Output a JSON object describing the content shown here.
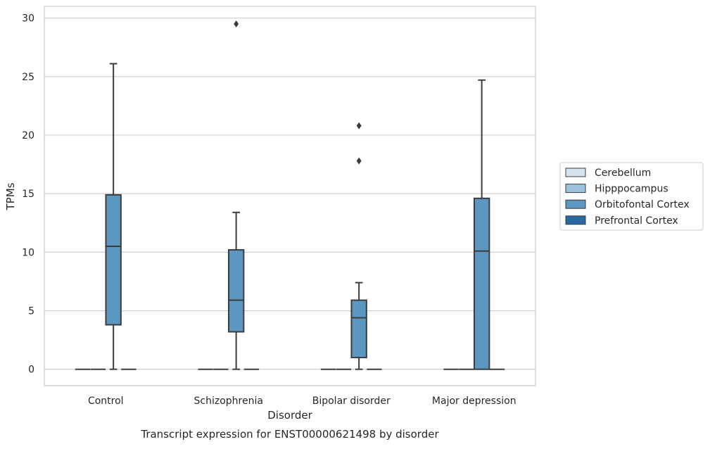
{
  "chart_data": {
    "type": "box",
    "caption": "Transcript expression for ENST00000621498 by disorder",
    "xlabel": "Disorder",
    "ylabel": "TPMs",
    "ylim": [
      -1.4,
      31
    ],
    "yticks": [
      0,
      5,
      10,
      15,
      20,
      25,
      30
    ],
    "grid": "horizontal",
    "legend_position": "right",
    "categories": [
      "Control",
      "Schizophrenia",
      "Bipolar disorder",
      "Major depression"
    ],
    "series": [
      {
        "name": "Cerebellum",
        "color": "#d4e3f0",
        "boxes": [
          {
            "category": "Control",
            "q1": 0,
            "median": 0,
            "q3": 0,
            "whisker_low": 0,
            "whisker_high": 0,
            "outliers": []
          },
          {
            "category": "Schizophrenia",
            "q1": 0,
            "median": 0,
            "q3": 0,
            "whisker_low": 0,
            "whisker_high": 0,
            "outliers": []
          },
          {
            "category": "Bipolar disorder",
            "q1": 0,
            "median": 0,
            "q3": 0,
            "whisker_low": 0,
            "whisker_high": 0,
            "outliers": []
          },
          {
            "category": "Major depression",
            "q1": 0,
            "median": 0,
            "q3": 0,
            "whisker_low": 0,
            "whisker_high": 0,
            "outliers": []
          }
        ]
      },
      {
        "name": "Hipppocampus",
        "color": "#9dc2dd",
        "boxes": [
          {
            "category": "Control",
            "q1": 0,
            "median": 0,
            "q3": 0,
            "whisker_low": 0,
            "whisker_high": 0,
            "outliers": []
          },
          {
            "category": "Schizophrenia",
            "q1": 0,
            "median": 0,
            "q3": 0,
            "whisker_low": 0,
            "whisker_high": 0,
            "outliers": []
          },
          {
            "category": "Bipolar disorder",
            "q1": 0,
            "median": 0,
            "q3": 0,
            "whisker_low": 0,
            "whisker_high": 0,
            "outliers": []
          },
          {
            "category": "Major depression",
            "q1": 0,
            "median": 0,
            "q3": 0,
            "whisker_low": 0,
            "whisker_high": 0,
            "outliers": []
          }
        ]
      },
      {
        "name": "Orbitofontal Cortex",
        "color": "#5b97c0",
        "boxes": [
          {
            "category": "Control",
            "q1": 3.8,
            "median": 10.5,
            "q3": 14.9,
            "whisker_low": 0,
            "whisker_high": 26.1,
            "outliers": []
          },
          {
            "category": "Schizophrenia",
            "q1": 3.2,
            "median": 5.9,
            "q3": 10.2,
            "whisker_low": 0,
            "whisker_high": 13.4,
            "outliers": [
              29.5
            ]
          },
          {
            "category": "Bipolar disorder",
            "q1": 1.0,
            "median": 4.4,
            "q3": 5.9,
            "whisker_low": 0,
            "whisker_high": 7.4,
            "outliers": [
              17.8,
              20.8
            ]
          },
          {
            "category": "Major depression",
            "q1": 0,
            "median": 10.1,
            "q3": 14.6,
            "whisker_low": 0,
            "whisker_high": 24.7,
            "outliers": []
          }
        ]
      },
      {
        "name": "Prefrontal Cortex",
        "color": "#2a68a1",
        "boxes": [
          {
            "category": "Control",
            "q1": 0,
            "median": 0,
            "q3": 0,
            "whisker_low": 0,
            "whisker_high": 0,
            "outliers": []
          },
          {
            "category": "Schizophrenia",
            "q1": 0,
            "median": 0,
            "q3": 0,
            "whisker_low": 0,
            "whisker_high": 0,
            "outliers": []
          },
          {
            "category": "Bipolar disorder",
            "q1": 0,
            "median": 0,
            "q3": 0,
            "whisker_low": 0,
            "whisker_high": 0,
            "outliers": []
          },
          {
            "category": "Major depression",
            "q1": 0,
            "median": 0,
            "q3": 0,
            "whisker_low": 0,
            "whisker_high": 0,
            "outliers": []
          }
        ]
      }
    ]
  }
}
